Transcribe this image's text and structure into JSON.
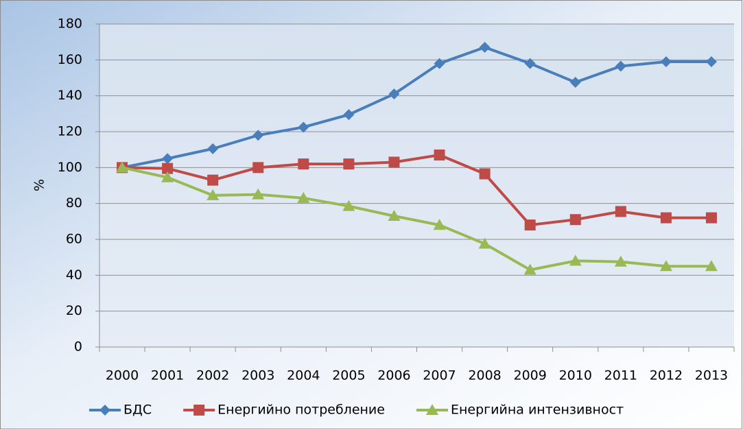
{
  "chart_data": {
    "type": "line",
    "y_label": "%",
    "categories": [
      "2000",
      "2001",
      "2002",
      "2003",
      "2004",
      "2005",
      "2006",
      "2007",
      "2008",
      "2009",
      "2010",
      "2011",
      "2012",
      "2013"
    ],
    "series": [
      {
        "name": "БДС",
        "color": "#4a7ebb",
        "marker": "diamond",
        "values": [
          100,
          105,
          110.5,
          118,
          122.5,
          129.5,
          141,
          158,
          167,
          158,
          147.5,
          156.5,
          159,
          159
        ]
      },
      {
        "name": "Енергийно потребление",
        "color": "#be4b48",
        "marker": "square",
        "values": [
          100,
          99.5,
          93,
          100,
          102,
          102,
          103,
          107,
          96.5,
          68,
          71,
          75.5,
          72,
          72
        ]
      },
      {
        "name": "Енергийна интензивност",
        "color": "#98b954",
        "marker": "triangle",
        "values": [
          100,
          94.5,
          84.5,
          85,
          83,
          78.5,
          73,
          68,
          57.5,
          43,
          48,
          47.5,
          45,
          45
        ]
      }
    ],
    "ylim": [
      0,
      180
    ],
    "yticks": [
      0,
      20,
      40,
      60,
      80,
      100,
      120,
      140,
      160,
      180
    ],
    "grid": true,
    "legend": "bottom"
  }
}
